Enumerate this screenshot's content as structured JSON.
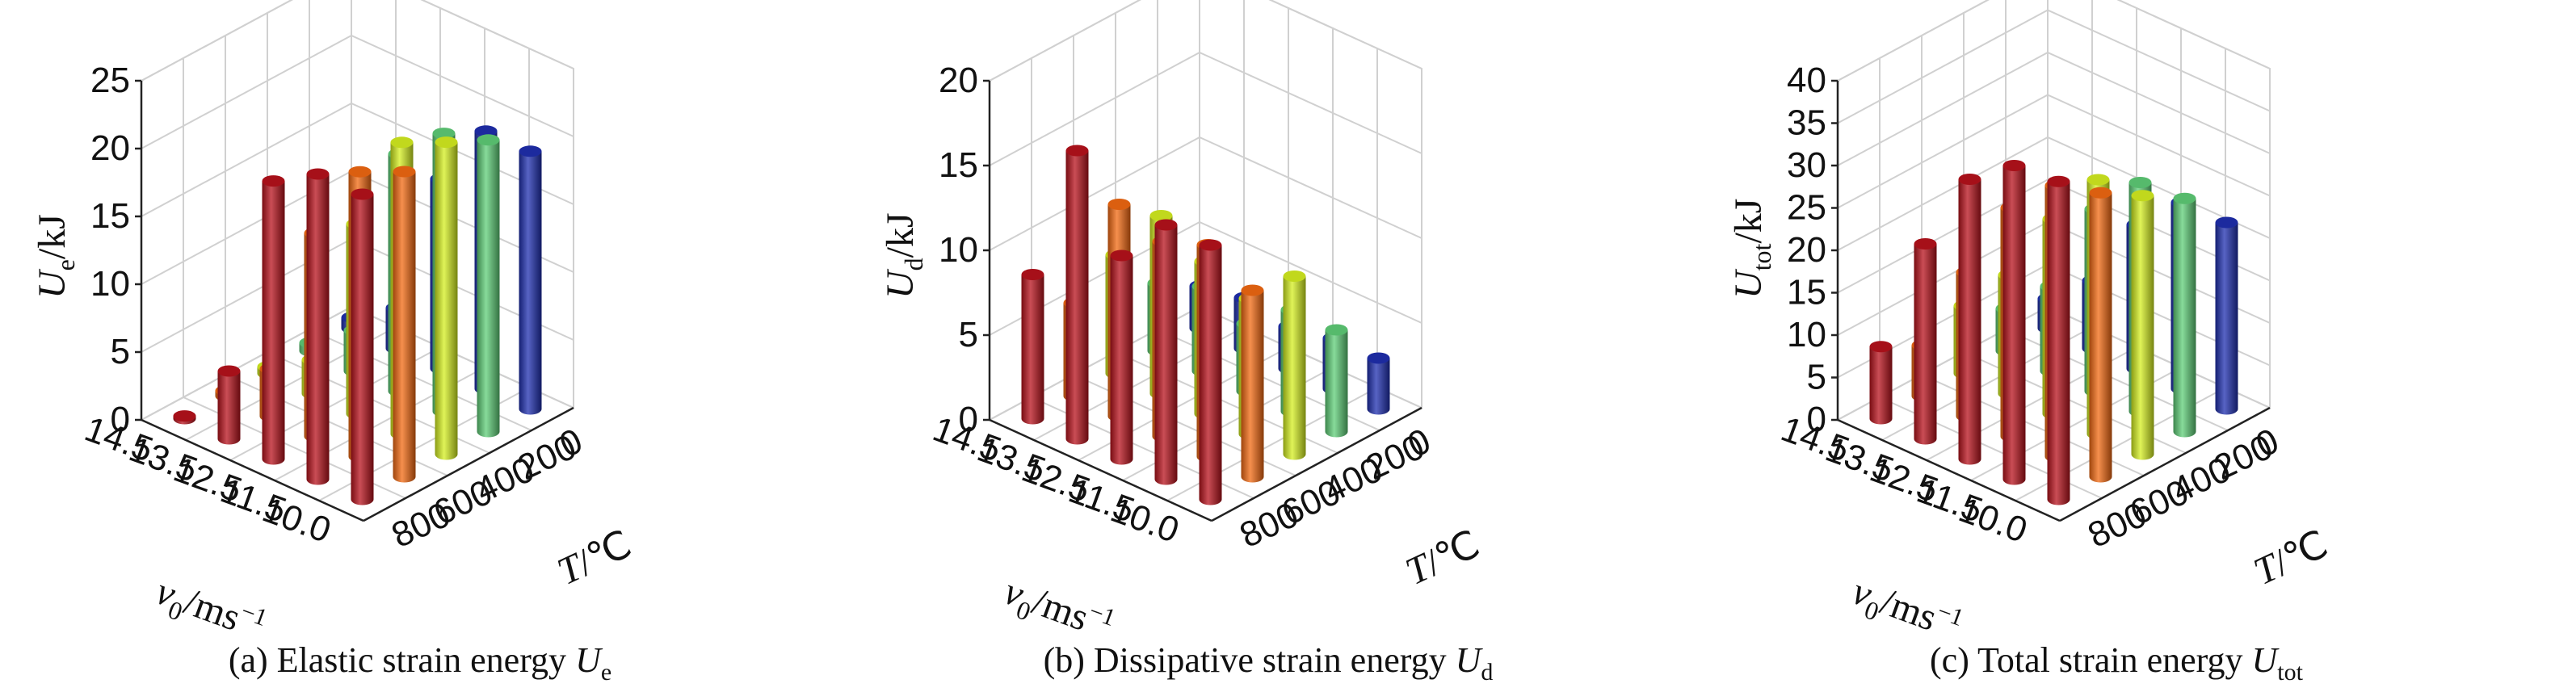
{
  "colors": {
    "T0": "#1f2fb0",
    "T200": "#5fcf78",
    "T400": "#d6f020",
    "T600": "#f36a12",
    "T800": "#b8121c"
  },
  "chart_data": [
    {
      "type": "bar3d",
      "caption_prefix": "(a) Elastic strain energy ",
      "caption_sym": "U",
      "caption_sub": "e",
      "z_sym": "U",
      "z_sub": "e",
      "z_unit": "/kJ",
      "zlim": [
        0,
        25
      ],
      "z_ticks": [
        "0",
        "5",
        "10",
        "15",
        "20",
        "25"
      ],
      "x_label_sym": "v",
      "x_label_sub": "0",
      "x_label_unit": "/ms",
      "x_label_sup": "−1",
      "x_ticks": [
        "14.5",
        "13.5",
        "12.5",
        "11.5",
        "10.0"
      ],
      "y_label_sym": "T",
      "y_label_unit": "/℃",
      "y_ticks": [
        "0",
        "200",
        "400",
        "600",
        "800"
      ],
      "rows_velocity": [
        "14.5",
        "13.5",
        "12.5",
        "11.5",
        "10.0"
      ],
      "cols_temperature": [
        "800",
        "600",
        "400",
        "200",
        "0"
      ],
      "values": [
        [
          0.2,
          0.4,
          0.5,
          0.6,
          0.8
        ],
        [
          5.0,
          3.5,
          2.5,
          3.0,
          3.0
        ],
        [
          20.5,
          15.0,
          14.0,
          17.5,
          14.0
        ],
        [
          22.5,
          21.0,
          21.5,
          20.5,
          19.0
        ],
        [
          22.5,
          22.5,
          23.0,
          21.5,
          19.0
        ]
      ]
    },
    {
      "type": "bar3d",
      "caption_prefix": "(b) Dissipative strain energy ",
      "caption_sym": "U",
      "caption_sub": "d",
      "z_sym": "U",
      "z_sub": "d",
      "z_unit": "/kJ",
      "zlim": [
        0,
        20
      ],
      "z_ticks": [
        "0",
        "5",
        "10",
        "15",
        "20"
      ],
      "x_label_sym": "v",
      "x_label_sub": "0",
      "x_label_unit": "/ms",
      "x_label_sup": "−1",
      "x_ticks": [
        "14.5",
        "13.5",
        "12.5",
        "11.5",
        "10.0"
      ],
      "y_label_sym": "T",
      "y_label_unit": "/℃",
      "y_ticks": [
        "0",
        "200",
        "400",
        "600",
        "800"
      ],
      "rows_velocity": [
        "14.5",
        "13.5",
        "12.5",
        "11.5",
        "10.0"
      ],
      "cols_temperature": [
        "800",
        "600",
        "400",
        "200",
        "0"
      ],
      "values": [
        [
          8.5,
          5.5,
          7.0,
          4.0,
          2.5
        ],
        [
          17.0,
          12.5,
          10.5,
          5.0,
          3.0
        ],
        [
          12.0,
          11.5,
          9.0,
          4.0,
          2.5
        ],
        [
          15.0,
          12.5,
          8.0,
          6.0,
          3.0
        ],
        [
          15.0,
          11.0,
          10.5,
          6.0,
          3.0
        ]
      ]
    },
    {
      "type": "bar3d",
      "caption_prefix": "(c) Total strain energy ",
      "caption_sym": "U",
      "caption_sub": "tot",
      "z_sym": "U",
      "z_sub": "tot",
      "z_unit": "/kJ",
      "zlim": [
        0,
        40
      ],
      "z_ticks": [
        "0",
        "5",
        "10",
        "15",
        "20",
        "25",
        "30",
        "35",
        "40"
      ],
      "x_label_sym": "v",
      "x_label_sub": "0",
      "x_label_unit": "/ms",
      "x_label_sup": "−1",
      "x_ticks": [
        "14.5",
        "13.5",
        "12.5",
        "11.5",
        "10.0"
      ],
      "y_label_sym": "T",
      "y_label_unit": "/℃",
      "y_ticks": [
        "0",
        "200",
        "400",
        "600",
        "800"
      ],
      "rows_velocity": [
        "14.5",
        "13.5",
        "12.5",
        "11.5",
        "10.0"
      ],
      "cols_temperature": [
        "800",
        "600",
        "400",
        "200",
        "0"
      ],
      "values": [
        [
          8.5,
          6.0,
          8.0,
          5.0,
          3.5
        ],
        [
          23.0,
          17.0,
          14.0,
          10.0,
          8.0
        ],
        [
          33.0,
          27.0,
          23.0,
          21.5,
          17.0
        ],
        [
          37.0,
          32.0,
          30.0,
          27.0,
          22.0
        ],
        [
          37.5,
          33.5,
          30.5,
          27.5,
          22.0
        ]
      ]
    }
  ]
}
